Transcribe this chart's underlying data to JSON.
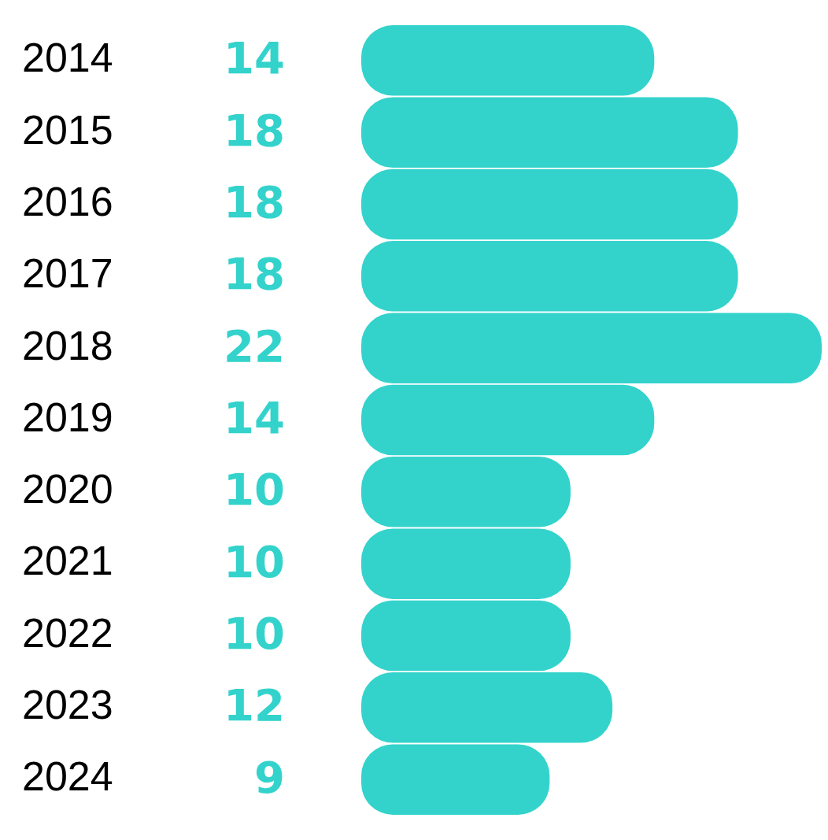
{
  "chart_data": {
    "type": "bar",
    "orientation": "horizontal",
    "categories": [
      "2014",
      "2015",
      "2016",
      "2017",
      "2018",
      "2019",
      "2020",
      "2021",
      "2022",
      "2023",
      "2024"
    ],
    "values": [
      14,
      18,
      18,
      18,
      22,
      14,
      10,
      10,
      10,
      12,
      9
    ],
    "color": "#33d3cc",
    "xlim": [
      0,
      22
    ],
    "data_labels": true,
    "grid": false,
    "legend": false,
    "tick_labels": "y"
  }
}
